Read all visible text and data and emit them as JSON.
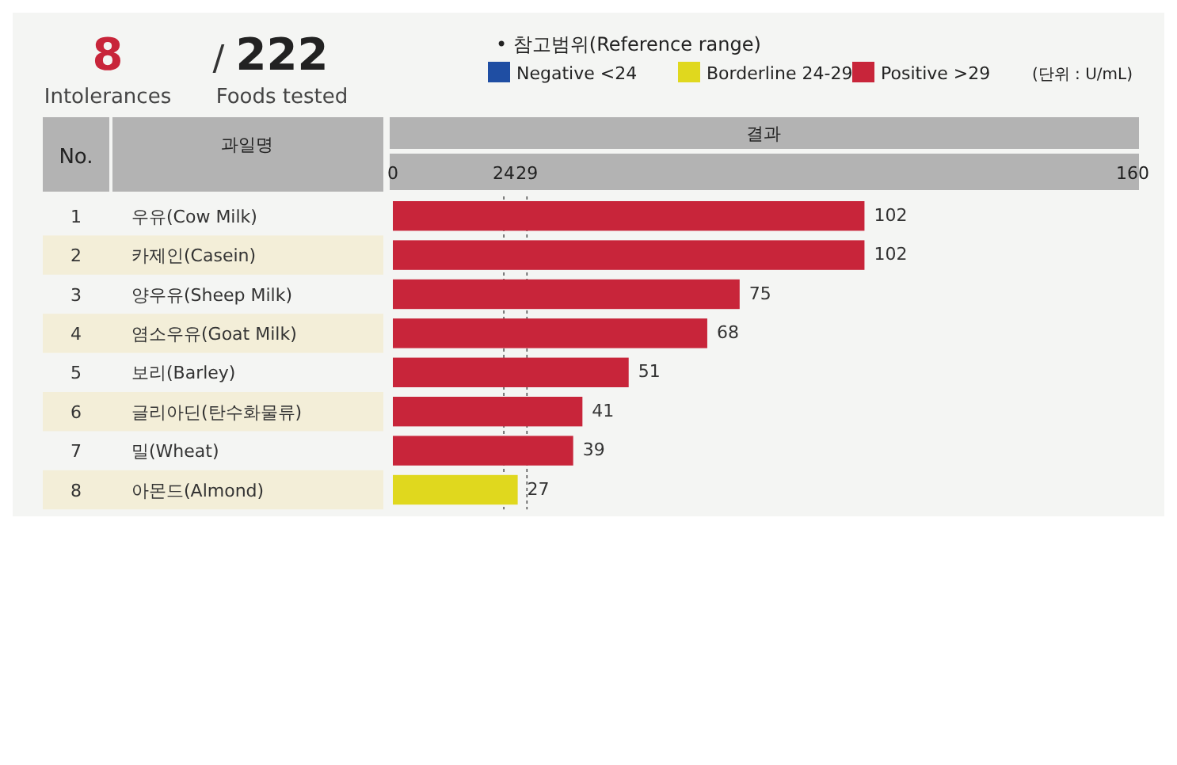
{
  "chart_data": {
    "type": "bar",
    "orientation": "horizontal",
    "categories": [
      "우유(Cow Milk)",
      "카제인(Casein)",
      "양우유(Sheep Milk)",
      "염소우유(Goat Milk)",
      "보리(Barley)",
      "글리아딘(탄수화물류)",
      "밀(Wheat)",
      "아몬드(Almond)"
    ],
    "series": [
      {
        "name": "Negative <24",
        "color": "#1f4ea3",
        "values": [
          null,
          null,
          null,
          null,
          null,
          null,
          null,
          null
        ]
      },
      {
        "name": "Borderline 24-29",
        "color": "#e0d81e",
        "values": [
          null,
          null,
          null,
          null,
          null,
          null,
          null,
          27
        ]
      },
      {
        "name": "Positive >29",
        "color": "#c8253a",
        "values": [
          102,
          102,
          75,
          68,
          51,
          41,
          39,
          null
        ]
      }
    ],
    "xlim": [
      0,
      160
    ],
    "xticks": [
      0,
      24,
      29,
      160
    ],
    "ref_lines": [
      {
        "axis": "x",
        "value": 24,
        "line_style": "dotted"
      },
      {
        "axis": "x",
        "value": 29,
        "line_style": "dotted"
      }
    ],
    "data_labels": true,
    "legend": "top right",
    "legend_title": "• 참고범위(Reference range)",
    "xlabel": "결과",
    "ylabel": "과일명",
    "annotations": [
      "8",
      "/",
      "222",
      "Intolerances",
      "Foods tested",
      "(단위 : U/mL)",
      "No.",
      "1",
      "2",
      "3",
      "4",
      "5",
      "6",
      "7",
      "8"
    ]
  }
}
